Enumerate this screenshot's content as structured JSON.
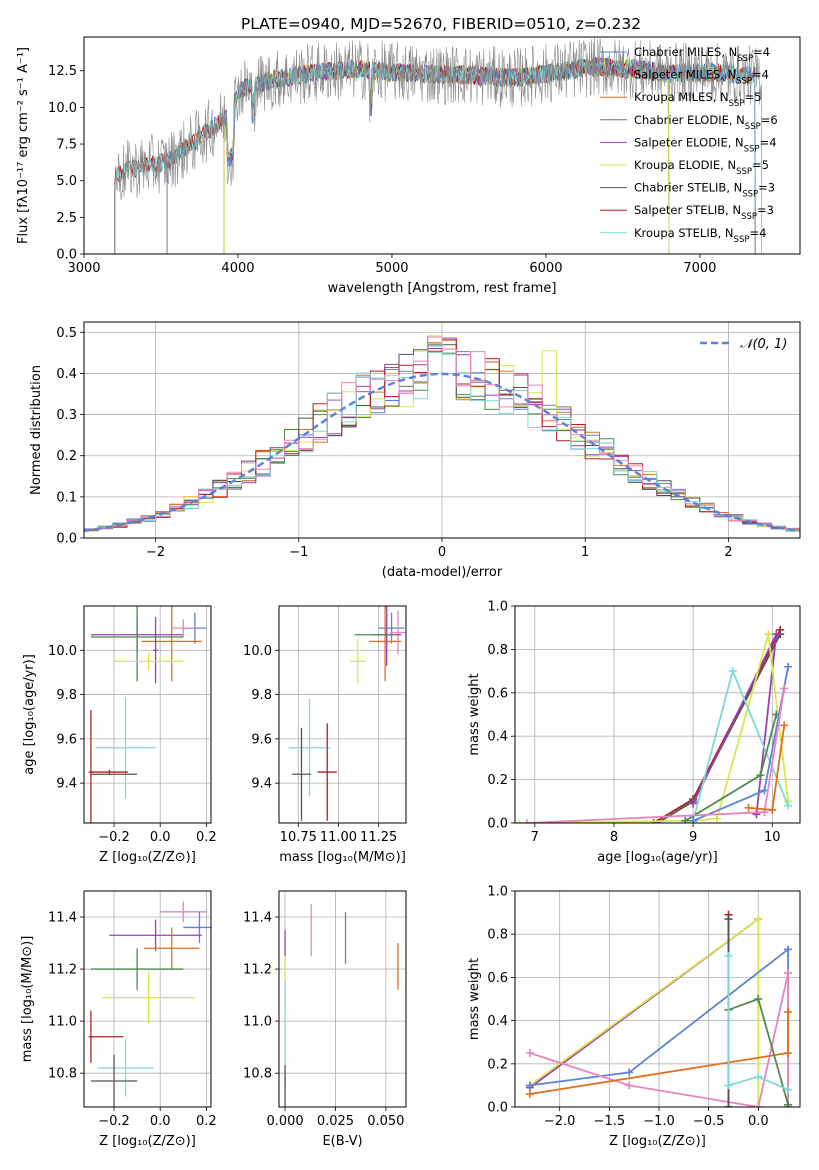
{
  "figure_title": "PLATE=0940, MJD=52670, FIBERID=0510, z=0.232",
  "colors": {
    "Chabrier MILES": "#5b84d6",
    "Salpeter MILES": "#8a8a8a",
    "Kroupa MILES": "#e0701f",
    "Chabrier ELODIE": "#4f8a4f",
    "Salpeter ELODIE": "#9b3fb0",
    "Kroupa ELODIE": "#d9e64f",
    "Chabrier STELIB": "#555555",
    "Salpeter STELIB": "#b51f1f",
    "Kroupa STELIB": "#7fd9d4",
    "pink": "#e884bf",
    "normal_curve": "#5b84d6"
  },
  "chart_data": [
    {
      "id": "spectrum",
      "type": "line",
      "xlabel": "wavelength [Angstrom, rest frame]",
      "ylabel": "Flux [fλ10⁻¹⁷ erg cm⁻² s⁻¹ A⁻¹]",
      "xlim": [
        3000,
        7650
      ],
      "ylim": [
        0,
        14.8
      ],
      "xticks": [
        3000,
        4000,
        5000,
        6000,
        7000
      ],
      "yticks": [
        0.0,
        2.5,
        5.0,
        7.5,
        10.0,
        12.5
      ],
      "continuum": {
        "x": [
          3200,
          3300,
          3400,
          3550,
          3700,
          3850,
          3950,
          4000,
          4200,
          4500,
          4800,
          5000,
          5200,
          5500,
          5800,
          6000,
          6300,
          6600,
          6800,
          7000,
          7300,
          7400
        ],
        "y": [
          5.2,
          5.8,
          6.0,
          6.3,
          7.5,
          8.8,
          9.5,
          11.2,
          11.8,
          12.4,
          12.6,
          12.4,
          12.3,
          12.2,
          12.0,
          12.3,
          12.8,
          12.6,
          12.3,
          12.4,
          12.2,
          12.1
        ]
      },
      "legend": [
        {
          "name": "Chabrier MILES",
          "nssp": "4"
        },
        {
          "name": "Salpeter MILES",
          "nssp": "4"
        },
        {
          "name": "Kroupa MILES",
          "nssp": "5"
        },
        {
          "name": "Chabrier ELODIE",
          "nssp": "6"
        },
        {
          "name": "Salpeter ELODIE",
          "nssp": "4"
        },
        {
          "name": "Kroupa ELODIE",
          "nssp": "5"
        },
        {
          "name": "Chabrier STELIB",
          "nssp": "3"
        },
        {
          "name": "Salpeter STELIB",
          "nssp": "3"
        },
        {
          "name": "Kroupa STELIB",
          "nssp": "4"
        }
      ],
      "legend_placement": "right"
    },
    {
      "id": "residuals",
      "type": "histogram",
      "xlabel": "(data-model)/error",
      "ylabel": "Normed distribution",
      "xlim": [
        -2.5,
        2.5
      ],
      "ylim": [
        0,
        0.525
      ],
      "xticks": [
        -2,
        -1,
        0,
        1,
        2
      ],
      "yticks": [
        0.0,
        0.1,
        0.2,
        0.3,
        0.4,
        0.5
      ],
      "bin_width": 0.1,
      "legend": [
        {
          "name": "𝒩(0, 1)",
          "style": "dashed"
        }
      ],
      "grid": true
    },
    {
      "id": "age_vs_Z",
      "type": "errorbar",
      "xlabel": "Z [log₁₀(Z/Z⊙)]",
      "ylabel": "age  [log₁₀(age/yr)]",
      "xlim": [
        -0.33,
        0.22
      ],
      "ylim": [
        9.22,
        10.2
      ],
      "xticks": [
        -0.2,
        0.0,
        0.2
      ],
      "xticklabels": [
        "−0.2",
        "0.0",
        "0.2"
      ],
      "yticks": [
        9.4,
        9.6,
        9.8,
        10.0
      ],
      "points": [
        {
          "s": "Chabrier MILES",
          "x": 0.15,
          "y": 10.1,
          "xe": 0.05,
          "ye": 0.07
        },
        {
          "s": "Kroupa MILES",
          "x": 0.05,
          "y": 10.04,
          "xe": 0.13,
          "ye": 0.18
        },
        {
          "s": "Salpeter ELODIE",
          "x": -0.1,
          "y": 10.07,
          "xe": 0.2,
          "ye": 0.08
        },
        {
          "s": "pink",
          "x": 0.1,
          "y": 10.1,
          "xe": 0.05,
          "ye": 0.04
        },
        {
          "s": "Chabrier ELODIE",
          "x": -0.1,
          "y": 10.06,
          "xe": 0.2,
          "ye": 0.2
        },
        {
          "s": "Salpeter ELODIE",
          "x": -0.02,
          "y": 10.0,
          "xe": 0.01,
          "ye": 0.15
        },
        {
          "s": "Kroupa ELODIE",
          "x": -0.05,
          "y": 9.95,
          "xe": 0.15,
          "ye": 0.04
        },
        {
          "s": "Kroupa STELIB",
          "x": -0.15,
          "y": 9.56,
          "xe": 0.13,
          "ye": 0.23
        },
        {
          "s": "Salpeter STELIB",
          "x": -0.3,
          "y": 9.45,
          "xe": 0.01,
          "ye": 0.28
        },
        {
          "s": "Salpeter STELIB",
          "x": -0.22,
          "y": 9.45,
          "xe": 0.08,
          "ye": 0.01
        },
        {
          "s": "Chabrier STELIB",
          "x": -0.2,
          "y": 9.44,
          "xe": 0.1,
          "ye": 0.0
        }
      ]
    },
    {
      "id": "age_vs_mass",
      "type": "errorbar",
      "xlabel": "mass [log₁₀(M/M⊙)]",
      "ylabel": "",
      "xlim": [
        10.63,
        11.42
      ],
      "ylim": [
        9.22,
        10.2
      ],
      "xticks": [
        10.75,
        11.0,
        11.25
      ],
      "yticks": [
        9.4,
        9.6,
        9.8,
        10.0
      ],
      "points": [
        {
          "s": "Chabrier MILES",
          "x": 11.33,
          "y": 10.1,
          "xe": 0.08,
          "ye": 0.07
        },
        {
          "s": "Kroupa MILES",
          "x": 11.29,
          "y": 10.04,
          "xe": 0.1,
          "ye": 0.18
        },
        {
          "s": "pink",
          "x": 11.37,
          "y": 10.08,
          "xe": 0.05,
          "ye": 0.1
        },
        {
          "s": "Salpeter ELODIE",
          "x": 11.3,
          "y": 10.07,
          "xe": 0.09,
          "ye": 0.14
        },
        {
          "s": "Chabrier ELODIE",
          "x": 11.22,
          "y": 10.07,
          "xe": 0.12,
          "ye": 0.0
        },
        {
          "s": "Kroupa ELODIE",
          "x": 11.12,
          "y": 9.95,
          "xe": 0.05,
          "ye": 0.1
        },
        {
          "s": "Kroupa STELIB",
          "x": 10.82,
          "y": 9.56,
          "xe": 0.13,
          "ye": 0.22
        },
        {
          "s": "Chabrier STELIB",
          "x": 10.77,
          "y": 9.44,
          "xe": 0.06,
          "ye": 0.21
        },
        {
          "s": "Salpeter STELIB",
          "x": 10.93,
          "y": 9.45,
          "xe": 0.06,
          "ye": 0.22
        }
      ]
    },
    {
      "id": "massweight_vs_age",
      "type": "line",
      "xlabel": "age  [log₁₀(age/yr)]",
      "ylabel": "mass weight",
      "xlim": [
        6.75,
        10.35
      ],
      "ylim": [
        0,
        1.0
      ],
      "xticks": [
        7,
        8,
        9,
        10
      ],
      "yticks": [
        0.0,
        0.2,
        0.4,
        0.6,
        0.8,
        1.0
      ],
      "series": [
        {
          "s": "Salpeter STELIB",
          "x": [
            8.5,
            9.0,
            10.1
          ],
          "y": [
            0.0,
            0.11,
            0.89
          ]
        },
        {
          "s": "Chabrier STELIB",
          "x": [
            8.55,
            9.0,
            10.1
          ],
          "y": [
            0.0,
            0.1,
            0.87
          ]
        },
        {
          "s": "Salpeter ELODIE",
          "x": [
            9.0,
            10.05,
            9.8
          ],
          "y": [
            0.09,
            0.87,
            0.04
          ]
        },
        {
          "s": "Kroupa ELODIE",
          "x": [
            6.8,
            9.0,
            9.3,
            9.95,
            10.2
          ],
          "y": [
            0.0,
            0.01,
            0.02,
            0.87,
            0.1
          ]
        },
        {
          "s": "Kroupa STELIB",
          "x": [
            9.0,
            9.5,
            10.2
          ],
          "y": [
            0.01,
            0.7,
            0.08
          ]
        },
        {
          "s": "Chabrier ELODIE",
          "x": [
            8.9,
            9.85,
            10.05
          ],
          "y": [
            0.01,
            0.22,
            0.5
          ]
        },
        {
          "s": "Chabrier MILES",
          "x": [
            9.0,
            9.9,
            10.2
          ],
          "y": [
            0.01,
            0.15,
            0.72
          ]
        },
        {
          "s": "pink",
          "x": [
            6.9,
            9.9,
            10.15
          ],
          "y": [
            0.0,
            0.05,
            0.62
          ]
        },
        {
          "s": "Kroupa MILES",
          "x": [
            9.7,
            10.0,
            10.15
          ],
          "y": [
            0.07,
            0.06,
            0.45
          ]
        }
      ]
    },
    {
      "id": "mass_vs_Z",
      "type": "errorbar",
      "xlabel": "Z [log₁₀(Z/Z⊙)]",
      "ylabel": "mass [log₁₀(M/M⊙)]",
      "xlim": [
        -0.33,
        0.22
      ],
      "ylim": [
        10.67,
        11.5
      ],
      "xticks": [
        -0.2,
        0.0,
        0.2
      ],
      "xticklabels": [
        "−0.2",
        "0.0",
        "0.2"
      ],
      "yticks": [
        10.8,
        11.0,
        11.2,
        11.4
      ],
      "points": [
        {
          "s": "pink",
          "x": 0.1,
          "y": 11.42,
          "xe": 0.1,
          "ye": 0.04
        },
        {
          "s": "Chabrier MILES",
          "x": 0.17,
          "y": 11.36,
          "xe": 0.07,
          "ye": 0.06
        },
        {
          "s": "Salpeter ELODIE",
          "x": -0.02,
          "y": 11.33,
          "xe": 0.2,
          "ye": 0.06
        },
        {
          "s": "Kroupa MILES",
          "x": 0.05,
          "y": 11.28,
          "xe": 0.12,
          "ye": 0.08
        },
        {
          "s": "Chabrier ELODIE",
          "x": -0.1,
          "y": 11.2,
          "xe": 0.2,
          "ye": 0.08
        },
        {
          "s": "Kroupa ELODIE",
          "x": -0.05,
          "y": 11.09,
          "xe": 0.2,
          "ye": 0.1
        },
        {
          "s": "Salpeter STELIB",
          "x": -0.3,
          "y": 10.94,
          "xe": 0.01,
          "ye": 0.1
        },
        {
          "s": "Salpeter STELIB",
          "x": -0.23,
          "y": 10.94,
          "xe": 0.07,
          "ye": 0.0
        },
        {
          "s": "Kroupa STELIB",
          "x": -0.15,
          "y": 10.82,
          "xe": 0.12,
          "ye": 0.11
        },
        {
          "s": "Chabrier STELIB",
          "x": -0.2,
          "y": 10.77,
          "xe": 0.1,
          "ye": 0.1
        }
      ]
    },
    {
      "id": "mass_vs_EBV",
      "type": "errorbar",
      "xlabel": "E(B-V)",
      "ylabel": "",
      "xlim": [
        -0.003,
        0.06
      ],
      "ylim": [
        10.67,
        11.5
      ],
      "xticks": [
        0.0,
        0.025,
        0.05
      ],
      "xticklabels": [
        "0.000",
        "0.025",
        "0.050"
      ],
      "yticks": [
        10.8,
        11.0,
        11.2,
        11.4
      ],
      "points": [
        {
          "s": "pink",
          "x": 0.013,
          "y": 11.35,
          "xe": 0.0,
          "ye": 0.1
        },
        {
          "s": "Chabrier MILES",
          "x": 0.03,
          "y": 11.32,
          "xe": 0.0,
          "ye": 0.1
        },
        {
          "s": "Kroupa MILES",
          "x": 0.056,
          "y": 11.21,
          "xe": 0.0,
          "ye": 0.09
        },
        {
          "s": "Salpeter ELODIE",
          "x": 0.0,
          "y": 11.3,
          "xe": 0.0,
          "ye": 0.05
        },
        {
          "s": "Kroupa ELODIE",
          "x": 0.0,
          "y": 11.15,
          "xe": 0.0,
          "ye": 0.1
        },
        {
          "s": "Kroupa STELIB",
          "x": 0.0,
          "y": 10.95,
          "xe": 0.0,
          "ye": 0.2
        },
        {
          "s": "Chabrier STELIB",
          "x": 0.0,
          "y": 10.75,
          "xe": 0.0,
          "ye": 0.08
        }
      ]
    },
    {
      "id": "massweight_vs_Z",
      "type": "line",
      "xlabel": "Z [log₁₀(Z/Z⊙)]",
      "ylabel": "mass weight",
      "xlim": [
        -2.45,
        0.42
      ],
      "ylim": [
        0,
        1.0
      ],
      "xticks": [
        -2.0,
        -1.5,
        -1.0,
        -0.5,
        0.0
      ],
      "xticklabels": [
        "−2.0",
        "−1.5",
        "−1.0",
        "−0.5",
        "0.0"
      ],
      "yticks": [
        0.0,
        0.2,
        0.4,
        0.6,
        0.8,
        1.0
      ],
      "series": [
        {
          "s": "Salpeter ELODIE",
          "x": [
            -2.3,
            0.0
          ],
          "y": [
            0.09,
            0.87
          ]
        },
        {
          "s": "Kroupa ELODIE",
          "x": [
            -2.3,
            0.0,
            0.0
          ],
          "y": [
            0.1,
            0.87,
            0.0
          ]
        },
        {
          "s": "Chabrier MILES",
          "x": [
            -2.3,
            -1.3,
            0.3,
            0.3
          ],
          "y": [
            0.1,
            0.16,
            0.73,
            0.0
          ]
        },
        {
          "s": "pink",
          "x": [
            -2.3,
            -1.3,
            0.0,
            0.3,
            0.3
          ],
          "y": [
            0.25,
            0.1,
            0.0,
            0.62,
            0.0
          ]
        },
        {
          "s": "Kroupa MILES",
          "x": [
            -2.3,
            0.3,
            0.3
          ],
          "y": [
            0.06,
            0.25,
            0.44
          ]
        },
        {
          "s": "Salpeter STELIB",
          "x": [
            -0.3,
            -0.3
          ],
          "y": [
            0.0,
            0.89
          ]
        },
        {
          "s": "Chabrier STELIB",
          "x": [
            -0.3,
            -0.3
          ],
          "y": [
            0.0,
            0.87
          ]
        },
        {
          "s": "Chabrier ELODIE",
          "x": [
            -0.3,
            0.0,
            0.3
          ],
          "y": [
            0.45,
            0.5,
            0.01
          ]
        },
        {
          "s": "Kroupa STELIB",
          "x": [
            -0.3,
            -0.3,
            0.0,
            0.3
          ],
          "y": [
            0.7,
            0.1,
            0.14,
            0.08
          ]
        }
      ]
    }
  ]
}
